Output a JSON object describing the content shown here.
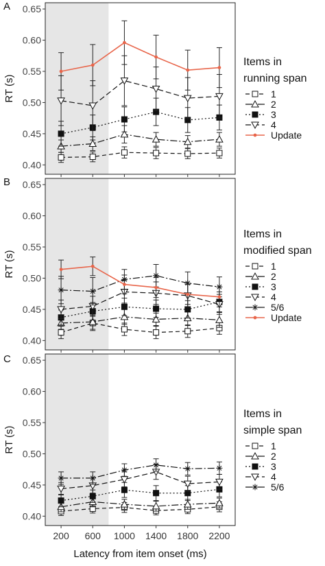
{
  "figure": {
    "xlabel": "Latency from item onset (ms)",
    "ylabel": "RT (s)",
    "x_ticks": [
      200,
      600,
      1000,
      1400,
      1800,
      2200
    ],
    "y_ticks": [
      0.4,
      0.45,
      0.5,
      0.55,
      0.6,
      0.65
    ],
    "shaded_region": [
      0,
      800
    ],
    "update_color": "#e8654a",
    "shade_color": "#e6e6e6"
  },
  "chart_data": [
    {
      "type": "line",
      "panel": "A",
      "legend_title": [
        "Items in",
        "running span"
      ],
      "x": [
        200,
        600,
        1000,
        1400,
        1800,
        2200
      ],
      "xlim": [
        0,
        2400
      ],
      "ylim": [
        0.385,
        0.66
      ],
      "series": [
        {
          "name": "1",
          "marker": "square-open",
          "dash": "6,4",
          "values": [
            0.412,
            0.413,
            0.42,
            0.419,
            0.418,
            0.419
          ],
          "err": [
            0.008,
            0.008,
            0.009,
            0.009,
            0.008,
            0.008
          ]
        },
        {
          "name": "2",
          "marker": "triangle-open",
          "dash": "10,3,2,3",
          "values": [
            0.43,
            0.434,
            0.449,
            0.441,
            0.437,
            0.441
          ],
          "err": [
            0.01,
            0.011,
            0.014,
            0.011,
            0.01,
            0.011
          ]
        },
        {
          "name": "3",
          "marker": "square-filled",
          "dash": "2,3",
          "values": [
            0.45,
            0.46,
            0.473,
            0.485,
            0.472,
            0.476
          ],
          "err": [
            0.02,
            0.02,
            0.02,
            0.022,
            0.02,
            0.02
          ]
        },
        {
          "name": "4",
          "marker": "triangle-down-open",
          "dash": "8,4",
          "values": [
            0.503,
            0.495,
            0.535,
            0.522,
            0.507,
            0.51
          ],
          "err": [
            0.04,
            0.04,
            0.04,
            0.035,
            0.033,
            0.035
          ]
        },
        {
          "name": "Update",
          "marker": "dot",
          "dash": "",
          "color": "#e8654a",
          "values": [
            0.55,
            0.56,
            0.596,
            0.573,
            0.552,
            0.556
          ],
          "err": [
            0.03,
            0.033,
            0.035,
            0.035,
            0.032,
            0.032
          ]
        }
      ]
    },
    {
      "type": "line",
      "panel": "B",
      "legend_title": [
        "Items in",
        "modified span"
      ],
      "x": [
        200,
        600,
        1000,
        1400,
        1800,
        2200
      ],
      "xlim": [
        0,
        2400
      ],
      "ylim": [
        0.385,
        0.66
      ],
      "series": [
        {
          "name": "1",
          "marker": "square-open",
          "dash": "6,4",
          "values": [
            0.413,
            0.428,
            0.418,
            0.413,
            0.415,
            0.42
          ],
          "err": [
            0.01,
            0.012,
            0.01,
            0.01,
            0.01,
            0.01
          ]
        },
        {
          "name": "2",
          "marker": "triangle-open",
          "dash": "10,3,2,3",
          "values": [
            0.428,
            0.43,
            0.438,
            0.434,
            0.436,
            0.433
          ],
          "err": [
            0.01,
            0.012,
            0.012,
            0.01,
            0.012,
            0.012
          ]
        },
        {
          "name": "3",
          "marker": "square-filled",
          "dash": "2,3",
          "values": [
            0.437,
            0.447,
            0.454,
            0.451,
            0.45,
            0.462
          ],
          "err": [
            0.012,
            0.014,
            0.014,
            0.014,
            0.014,
            0.016
          ]
        },
        {
          "name": "4",
          "marker": "triangle-down-open",
          "dash": "8,4",
          "values": [
            0.45,
            0.455,
            0.478,
            0.476,
            0.472,
            0.458
          ],
          "err": [
            0.015,
            0.016,
            0.018,
            0.018,
            0.018,
            0.016
          ]
        },
        {
          "name": "5/6",
          "marker": "asterisk",
          "dash": "10,3,2,3",
          "values": [
            0.481,
            0.479,
            0.498,
            0.504,
            0.492,
            0.486
          ],
          "err": [
            0.022,
            0.022,
            0.016,
            0.018,
            0.018,
            0.016
          ]
        },
        {
          "name": "Update",
          "marker": "dot",
          "dash": "",
          "color": "#e8654a",
          "values": [
            0.514,
            0.519,
            0.49,
            0.485,
            0.474,
            0.47
          ],
          "err": [
            0.015,
            0.015,
            0.015,
            0.016,
            0.016,
            0.016
          ]
        }
      ]
    },
    {
      "type": "line",
      "panel": "C",
      "legend_title": [
        "Items in",
        "simple span"
      ],
      "x": [
        200,
        600,
        1000,
        1400,
        1800,
        2200
      ],
      "xlim": [
        0,
        2400
      ],
      "ylim": [
        0.385,
        0.66
      ],
      "series": [
        {
          "name": "1",
          "marker": "square-open",
          "dash": "6,4",
          "values": [
            0.408,
            0.412,
            0.414,
            0.409,
            0.411,
            0.415
          ],
          "err": [
            0.007,
            0.007,
            0.008,
            0.007,
            0.007,
            0.008
          ]
        },
        {
          "name": "2",
          "marker": "triangle-open",
          "dash": "10,3,2,3",
          "values": [
            0.415,
            0.423,
            0.419,
            0.416,
            0.419,
            0.421
          ],
          "err": [
            0.008,
            0.008,
            0.008,
            0.008,
            0.008,
            0.008
          ]
        },
        {
          "name": "3",
          "marker": "square-filled",
          "dash": "2,3",
          "values": [
            0.425,
            0.432,
            0.442,
            0.437,
            0.437,
            0.443
          ],
          "err": [
            0.01,
            0.01,
            0.012,
            0.012,
            0.012,
            0.012
          ]
        },
        {
          "name": "4",
          "marker": "triangle-down-open",
          "dash": "8,4",
          "values": [
            0.444,
            0.449,
            0.459,
            0.471,
            0.452,
            0.455
          ],
          "err": [
            0.01,
            0.012,
            0.012,
            0.012,
            0.012,
            0.012
          ]
        },
        {
          "name": "5/6",
          "marker": "asterisk",
          "dash": "10,3,2,3",
          "values": [
            0.461,
            0.461,
            0.474,
            0.482,
            0.476,
            0.477
          ],
          "err": [
            0.01,
            0.01,
            0.01,
            0.01,
            0.01,
            0.01
          ]
        }
      ]
    }
  ]
}
